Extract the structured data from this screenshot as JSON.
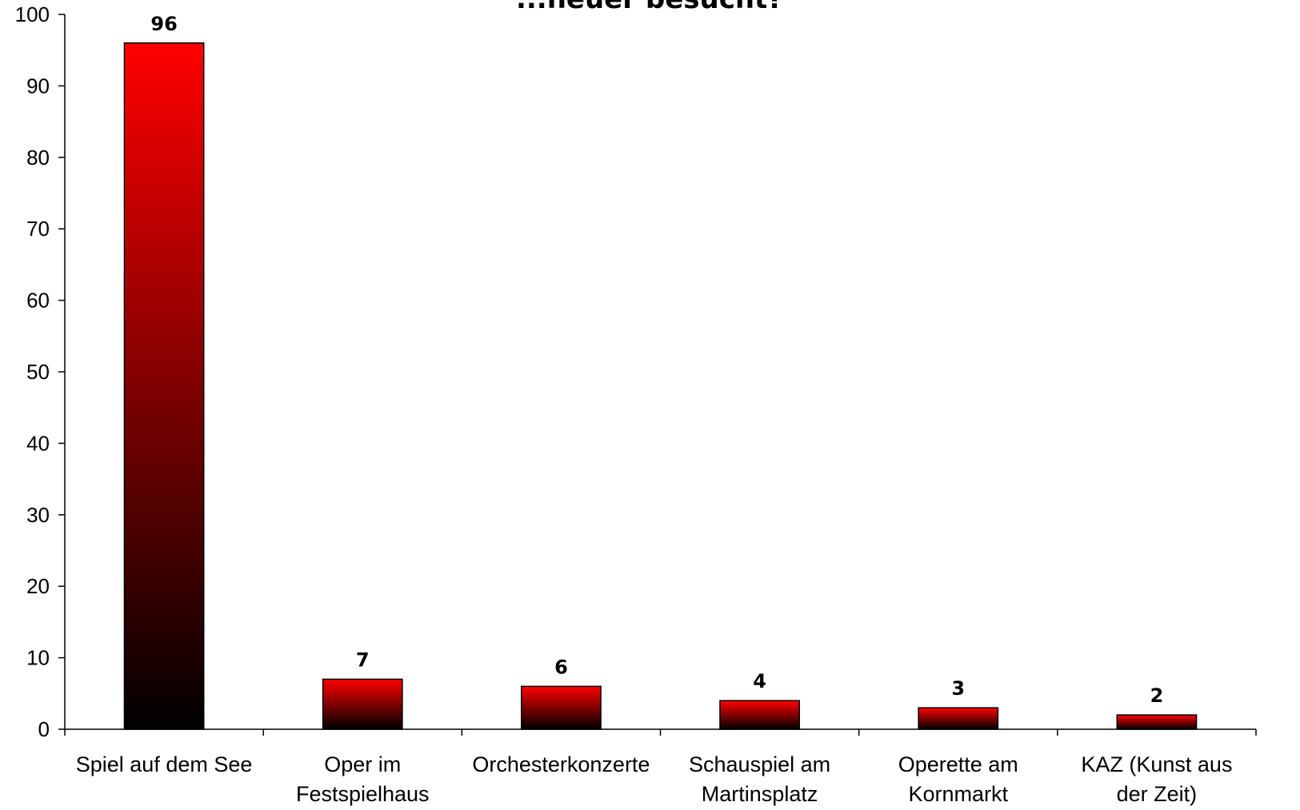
{
  "chart_data": {
    "type": "bar",
    "title": "...heuer besucht?",
    "categories": [
      [
        "Spiel auf dem See"
      ],
      [
        "Oper im",
        "Festspielhaus"
      ],
      [
        "Orchesterkonzerte"
      ],
      [
        "Schauspiel am",
        "Martinsplatz"
      ],
      [
        "Operette am",
        "Kornmarkt"
      ],
      [
        "KAZ (Kunst aus",
        "der Zeit)"
      ]
    ],
    "values": [
      96,
      7,
      6,
      4,
      3,
      2
    ],
    "value_labels": [
      "96",
      "7",
      "6",
      "4",
      "3",
      "2"
    ],
    "ylim": [
      0,
      100
    ],
    "yticks": [
      0,
      10,
      20,
      30,
      40,
      50,
      60,
      70,
      80,
      90,
      100
    ],
    "grid": false,
    "legend": "none",
    "colors": {
      "bar_top": "#ff0000",
      "bar_bottom": "#000000",
      "axis": "#000000"
    }
  }
}
